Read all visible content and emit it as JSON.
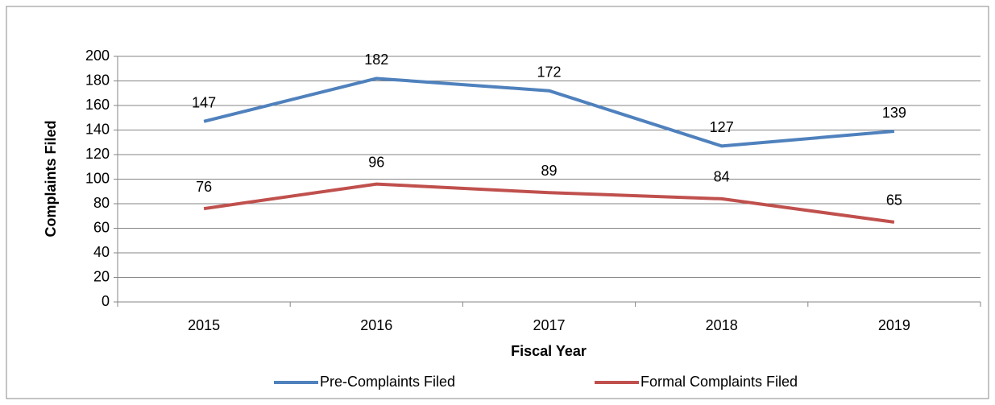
{
  "chart_data": {
    "type": "line",
    "categories": [
      "2015",
      "2016",
      "2017",
      "2018",
      "2019"
    ],
    "series": [
      {
        "name": "Pre-Complaints Filed",
        "color": "#4f81bd",
        "values": [
          147,
          182,
          172,
          127,
          139
        ]
      },
      {
        "name": "Formal Complaints Filed",
        "color": "#c0504d",
        "values": [
          76,
          96,
          89,
          84,
          65
        ]
      }
    ],
    "x_label": "Fiscal Year",
    "y_label": "Complaints Filed",
    "ylim": [
      0,
      200
    ],
    "yticks": [
      0,
      20,
      40,
      60,
      80,
      100,
      120,
      140,
      160,
      180,
      200
    ],
    "grid": true,
    "legend": "bottom"
  }
}
